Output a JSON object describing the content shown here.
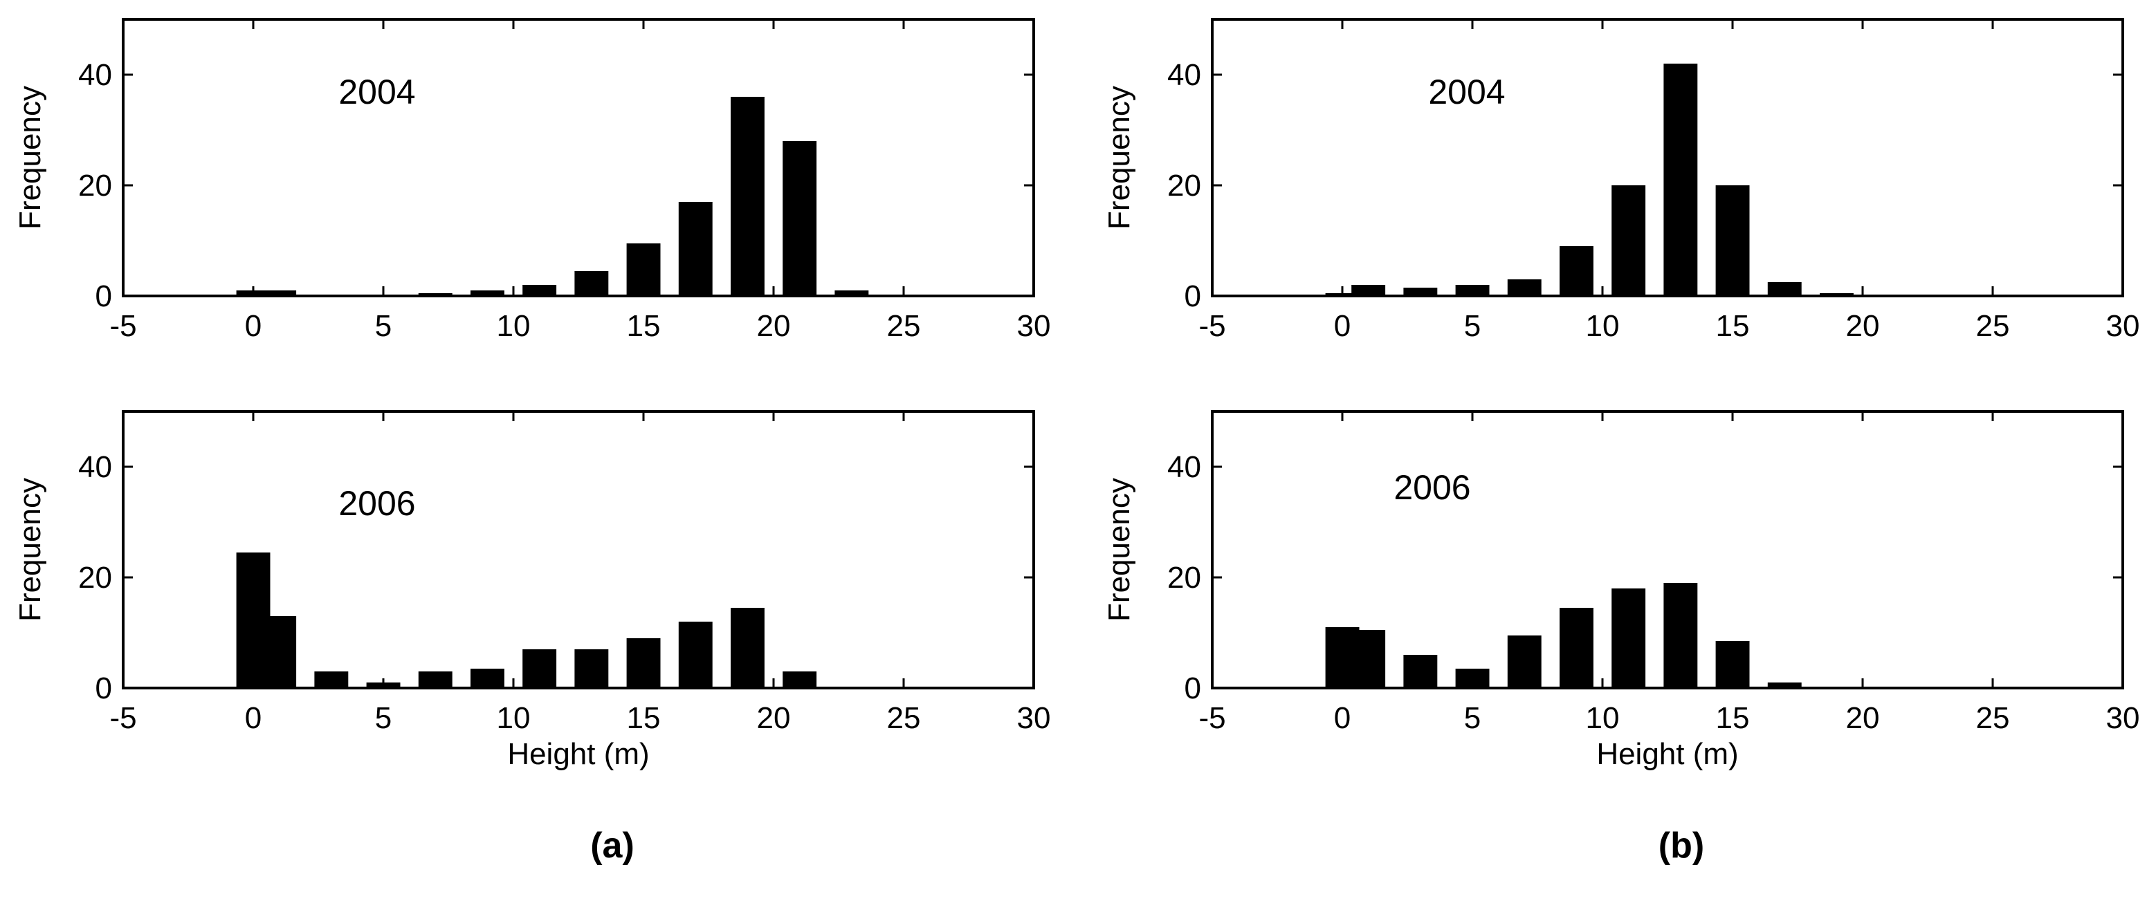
{
  "figure": {
    "panel_labels": [
      "(a)",
      "(b)"
    ]
  },
  "style": {
    "bar_color": "#000000",
    "axis_color": "#000000",
    "background": "#ffffff"
  },
  "chart_data": [
    {
      "type": "bar",
      "panel": "(a)",
      "annotation": "2004",
      "xlabel": "",
      "ylabel": "Frequency",
      "xlim": [
        -5,
        30
      ],
      "ylim": [
        0,
        50
      ],
      "xticks": [
        -5,
        0,
        5,
        10,
        15,
        20,
        25,
        30
      ],
      "yticks": [
        0,
        20,
        40
      ],
      "bin_width": 2,
      "x": [
        0,
        1,
        3,
        5,
        7,
        9,
        11,
        13,
        15,
        17,
        19,
        21,
        23
      ],
      "values": [
        1,
        1,
        0,
        0,
        0.5,
        1,
        2,
        4.5,
        9.5,
        17,
        36,
        28,
        1
      ]
    },
    {
      "type": "bar",
      "panel": "(b)",
      "annotation": "2004",
      "xlabel": "",
      "ylabel": "Frequency",
      "xlim": [
        -5,
        30
      ],
      "ylim": [
        0,
        50
      ],
      "xticks": [
        -5,
        0,
        5,
        10,
        15,
        20,
        25,
        30
      ],
      "yticks": [
        0,
        20,
        40
      ],
      "bin_width": 2,
      "x": [
        0,
        1,
        3,
        5,
        7,
        9,
        11,
        13,
        15,
        17,
        19
      ],
      "values": [
        0.5,
        2,
        1.5,
        2,
        3,
        9,
        20,
        42,
        20,
        2.5,
        0.5
      ]
    },
    {
      "type": "bar",
      "panel": "(a)",
      "annotation": "2006",
      "xlabel": "Height (m)",
      "ylabel": "Frequency",
      "xlim": [
        -5,
        30
      ],
      "ylim": [
        0,
        50
      ],
      "xticks": [
        -5,
        0,
        5,
        10,
        15,
        20,
        25,
        30
      ],
      "yticks": [
        0,
        20,
        40
      ],
      "bin_width": 2,
      "x": [
        0,
        1,
        3,
        5,
        7,
        9,
        11,
        13,
        15,
        17,
        19,
        21
      ],
      "values": [
        24.5,
        13,
        3,
        1,
        3,
        3.5,
        7,
        7,
        9,
        12,
        14.5,
        3
      ]
    },
    {
      "type": "bar",
      "panel": "(b)",
      "annotation": "2006",
      "xlabel": "Height (m)",
      "ylabel": "Frequency",
      "xlim": [
        -5,
        30
      ],
      "ylim": [
        0,
        50
      ],
      "xticks": [
        -5,
        0,
        5,
        10,
        15,
        20,
        25,
        30
      ],
      "yticks": [
        0,
        20,
        40
      ],
      "bin_width": 2,
      "x": [
        0,
        1,
        3,
        5,
        7,
        9,
        11,
        13,
        15,
        17
      ],
      "values": [
        11,
        10.5,
        6,
        3.5,
        9.5,
        14.5,
        18,
        19,
        8.5,
        1
      ]
    }
  ]
}
